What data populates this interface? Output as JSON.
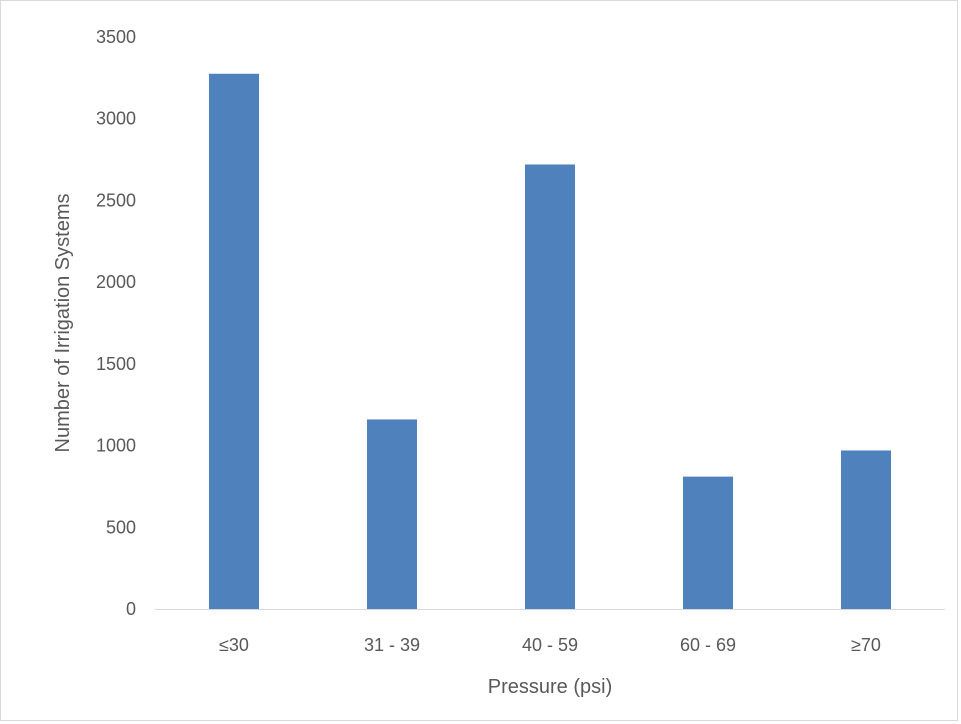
{
  "chart_data": {
    "type": "bar",
    "categories": [
      "≤30",
      "31 - 39",
      "40 - 59",
      "60 - 69",
      "≥70"
    ],
    "values": [
      3275,
      1160,
      2720,
      810,
      970
    ],
    "title": "",
    "xlabel": "Pressure (psi)",
    "ylabel": "Number of Irrigation Systems",
    "ylim": [
      0,
      3500
    ],
    "yticks": [
      0,
      500,
      1000,
      1500,
      2000,
      2500,
      3000,
      3500
    ],
    "grid": false,
    "legend": "none",
    "bar_color": "#4f81bd",
    "axis_color": "#d9d9d9",
    "text_color": "#595959"
  }
}
